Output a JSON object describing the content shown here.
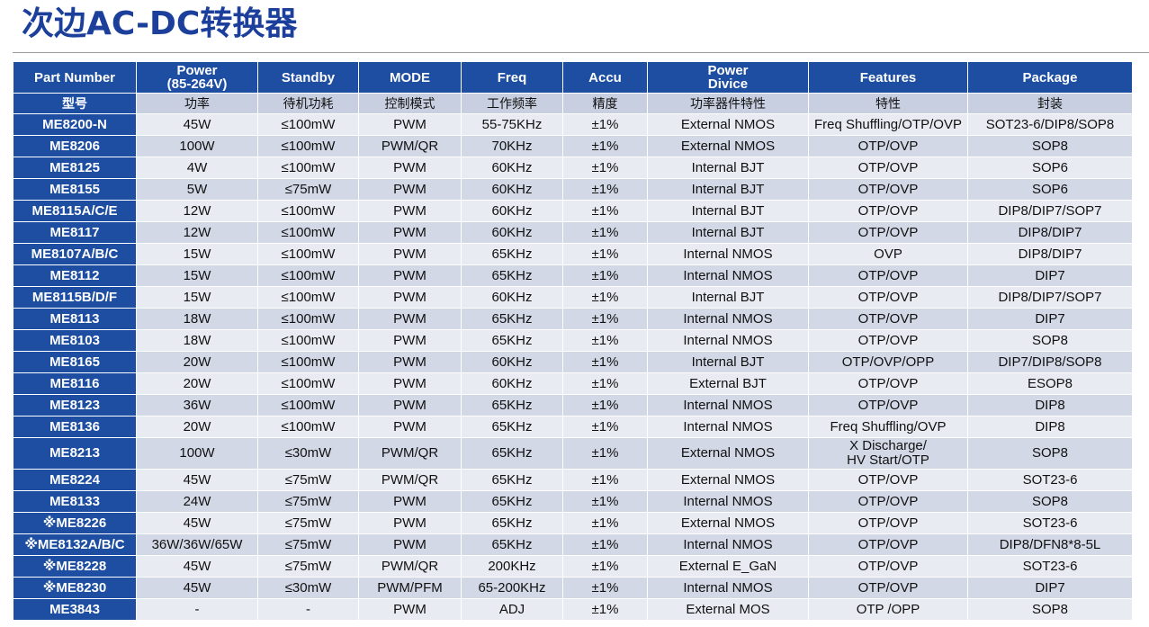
{
  "title": "次边AC-DC转换器",
  "headers": [
    [
      "Part Number",
      "型号"
    ],
    [
      "Power\n(85-264V)",
      "功率"
    ],
    [
      "Standby",
      "待机功耗"
    ],
    [
      "MODE",
      "控制模式"
    ],
    [
      "Freq",
      "工作频率"
    ],
    [
      "Accu",
      "精度"
    ],
    [
      "Power\nDivice",
      "功率器件特性"
    ],
    [
      "Features",
      "特性"
    ],
    [
      "Package",
      "封装"
    ]
  ],
  "rows": [
    [
      "ME8200-N",
      "45W",
      "≤100mW",
      "PWM",
      "55-75KHz",
      "±1%",
      "External NMOS",
      "Freq Shuffling/OTP/OVP",
      "SOT23-6/DIP8/SOP8"
    ],
    [
      "ME8206",
      "100W",
      "≤100mW",
      "PWM/QR",
      "70KHz",
      "±1%",
      "External NMOS",
      "OTP/OVP",
      "SOP8"
    ],
    [
      "ME8125",
      "4W",
      "≤100mW",
      "PWM",
      "60KHz",
      "±1%",
      "Internal BJT",
      "OTP/OVP",
      "SOP6"
    ],
    [
      "ME8155",
      "5W",
      "≤75mW",
      "PWM",
      "60KHz",
      "±1%",
      "Internal BJT",
      "OTP/OVP",
      "SOP6"
    ],
    [
      "ME8115A/C/E",
      "12W",
      "≤100mW",
      "PWM",
      "60KHz",
      "±1%",
      "Internal BJT",
      "OTP/OVP",
      "DIP8/DIP7/SOP7"
    ],
    [
      "ME8117",
      "12W",
      "≤100mW",
      "PWM",
      "60KHz",
      "±1%",
      "Internal BJT",
      "OTP/OVP",
      "DIP8/DIP7"
    ],
    [
      "ME8107A/B/C",
      "15W",
      "≤100mW",
      "PWM",
      "65KHz",
      "±1%",
      "Internal NMOS",
      "OVP",
      "DIP8/DIP7"
    ],
    [
      "ME8112",
      "15W",
      "≤100mW",
      "PWM",
      "65KHz",
      "±1%",
      "Internal NMOS",
      "OTP/OVP",
      "DIP7"
    ],
    [
      "ME8115B/D/F",
      "15W",
      "≤100mW",
      "PWM",
      "60KHz",
      "±1%",
      "Internal BJT",
      "OTP/OVP",
      "DIP8/DIP7/SOP7"
    ],
    [
      "ME8113",
      "18W",
      "≤100mW",
      "PWM",
      "65KHz",
      "±1%",
      "Internal NMOS",
      "OTP/OVP",
      "DIP7"
    ],
    [
      "ME8103",
      "18W",
      "≤100mW",
      "PWM",
      "65KHz",
      "±1%",
      "Internal NMOS",
      "OTP/OVP",
      "SOP8"
    ],
    [
      "ME8165",
      "20W",
      "≤100mW",
      "PWM",
      "60KHz",
      "±1%",
      "Internal BJT",
      "OTP/OVP/OPP",
      "DIP7/DIP8/SOP8"
    ],
    [
      "ME8116",
      "20W",
      "≤100mW",
      "PWM",
      "60KHz",
      "±1%",
      "External BJT",
      "OTP/OVP",
      "ESOP8"
    ],
    [
      "ME8123",
      "36W",
      "≤100mW",
      "PWM",
      "65KHz",
      "±1%",
      "Internal NMOS",
      "OTP/OVP",
      "DIP8"
    ],
    [
      "ME8136",
      "20W",
      "≤100mW",
      "PWM",
      "65KHz",
      "±1%",
      "Internal NMOS",
      "Freq Shuffling/OVP",
      "DIP8"
    ],
    [
      "ME8213",
      "100W",
      "≤30mW",
      "PWM/QR",
      "65KHz",
      "±1%",
      "External NMOS",
      "X Discharge/\nHV Start/OTP",
      "SOP8"
    ],
    [
      "ME8224",
      "45W",
      "≤75mW",
      "PWM/QR",
      "65KHz",
      "±1%",
      "External NMOS",
      "OTP/OVP",
      "SOT23-6"
    ],
    [
      "ME8133",
      "24W",
      "≤75mW",
      "PWM",
      "65KHz",
      "±1%",
      "Internal NMOS",
      "OTP/OVP",
      "SOP8"
    ],
    [
      "※ME8226",
      "45W",
      "≤75mW",
      "PWM",
      "65KHz",
      "±1%",
      "External NMOS",
      "OTP/OVP",
      "SOT23-6"
    ],
    [
      "※ME8132A/B/C",
      "36W/36W/65W",
      "≤75mW",
      "PWM",
      "65KHz",
      "±1%",
      "Internal NMOS",
      "OTP/OVP",
      "DIP8/DFN8*8-5L"
    ],
    [
      "※ME8228",
      "45W",
      "≤75mW",
      "PWM/QR",
      "200KHz",
      "±1%",
      "External E_GaN",
      "OTP/OVP",
      "SOT23-6"
    ],
    [
      "※ME8230",
      "45W",
      "≤30mW",
      "PWM/PFM",
      "65-200KHz",
      "±1%",
      "Internal NMOS",
      "OTP/OVP",
      "DIP7"
    ],
    [
      "ME3843",
      "-",
      "-",
      "PWM",
      "ADJ",
      "±1%",
      "External MOS",
      "OTP /OPP",
      "SOP8"
    ]
  ],
  "colors": {
    "title": "#1b3f9a",
    "header_bg": "#1d4ea2",
    "row_light": "#e8ebf2",
    "row_dark": "#d3d8e6"
  }
}
